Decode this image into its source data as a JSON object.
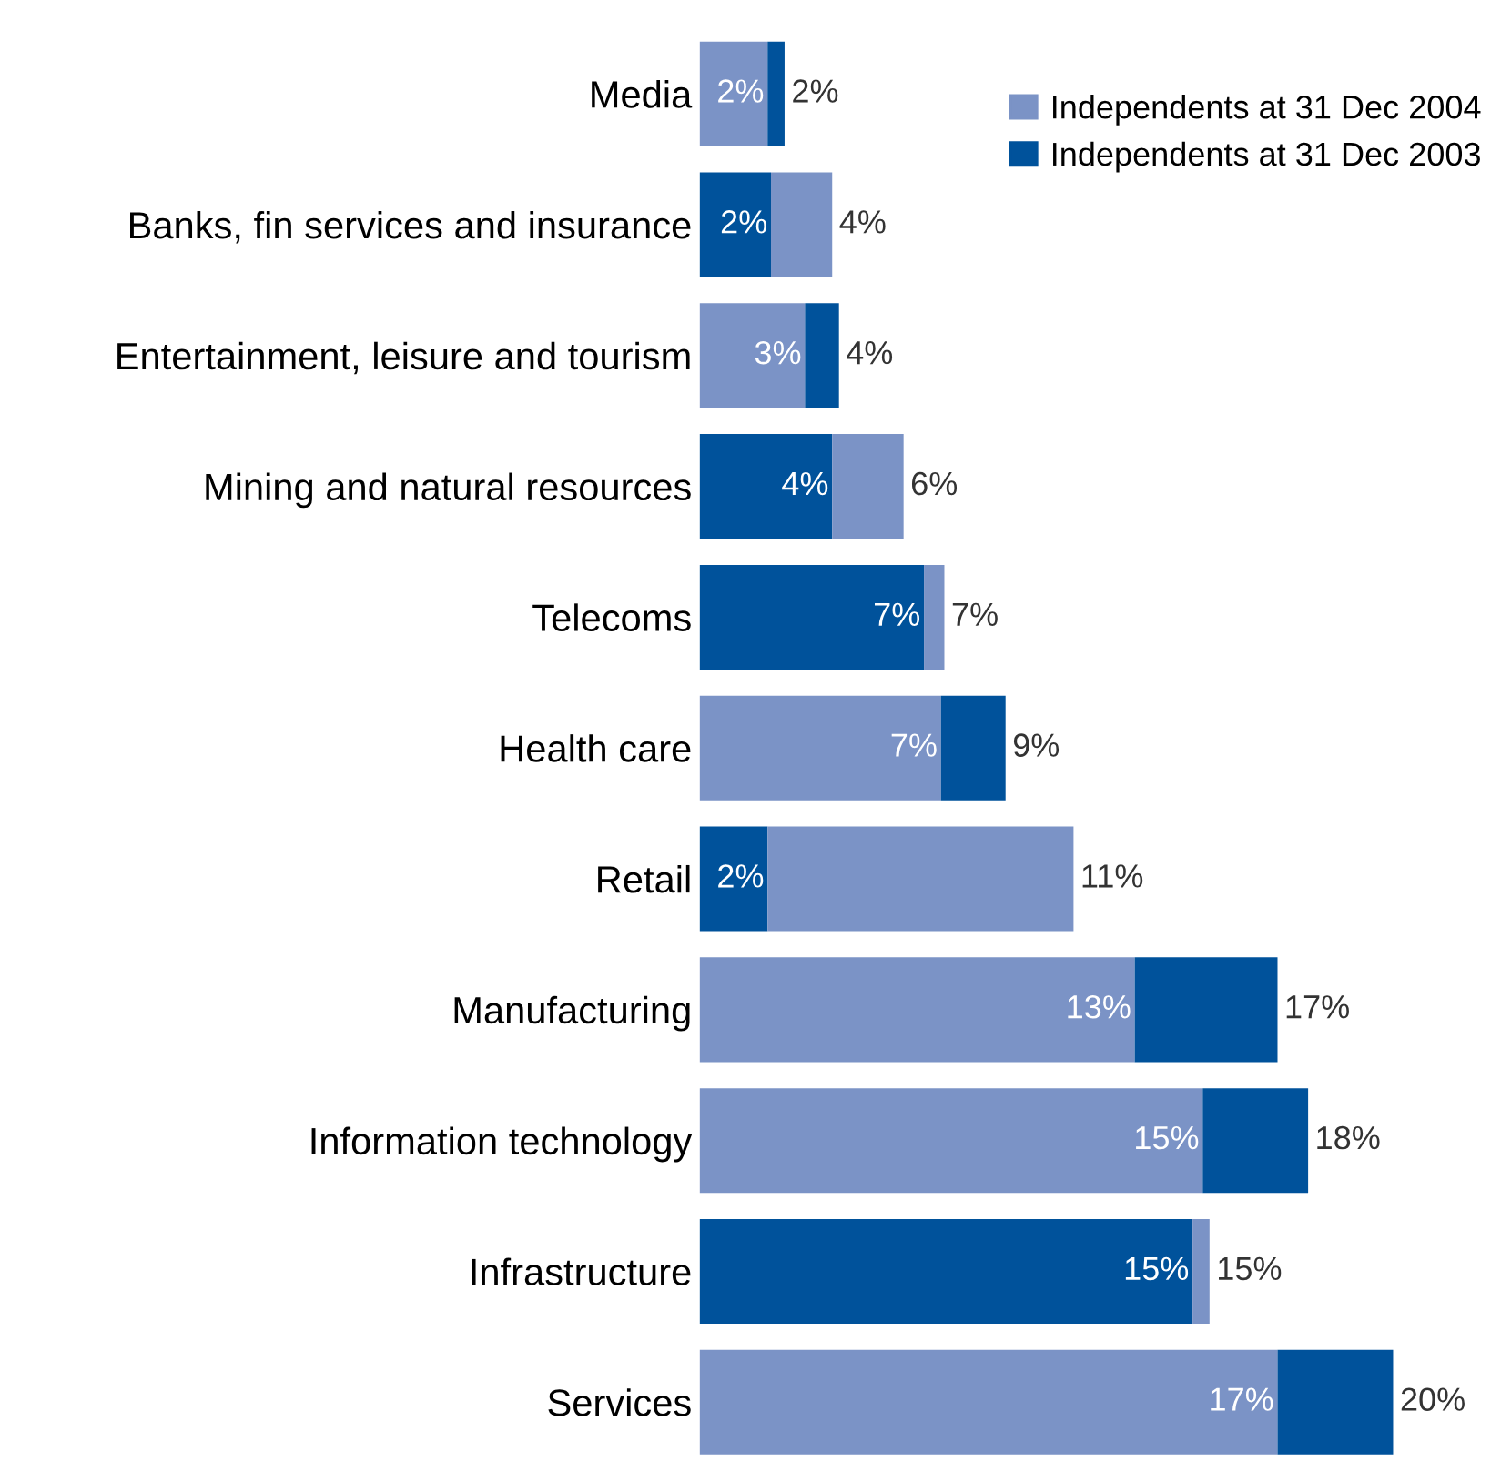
{
  "chart_data": {
    "type": "bar",
    "orientation": "horizontal",
    "stacked": true,
    "legend": "top right",
    "grid": false,
    "categories": [
      "Media",
      "Banks, fin services and insurance",
      "Entertainment, leisure and tourism",
      "Mining and natural resources",
      "Telecoms",
      "Health care",
      "Retail",
      "Manufacturing",
      "Information technology",
      "Infrastructure",
      "Services"
    ],
    "series": [
      {
        "name": "Independents at 31 Dec 2004",
        "color": "#7b93c6",
        "values": [
          2.0,
          null,
          3.1,
          null,
          null,
          7.1,
          null,
          12.8,
          14.8,
          null,
          17.0
        ],
        "value_labels": [
          "2%",
          null,
          "3%",
          null,
          null,
          "7%",
          null,
          "13%",
          "15%",
          null,
          "17%"
        ]
      },
      {
        "name": "Independents at 31 Dec 2003",
        "color": "#00529b",
        "values": [
          null,
          2.1,
          null,
          3.9,
          6.6,
          null,
          2.0,
          null,
          null,
          14.5,
          null
        ],
        "value_labels": [
          null,
          "2%",
          null,
          "4%",
          "7%",
          null,
          "2%",
          null,
          null,
          "15%",
          null
        ]
      },
      {
        "color": "#7b93c6",
        "values": [
          null,
          1.8,
          null,
          2.1,
          0.6,
          null,
          9.0,
          null,
          null,
          0.5,
          null
        ]
      },
      {
        "color": "#00529b",
        "values": [
          0.5,
          null,
          1.0,
          null,
          null,
          1.9,
          null,
          4.2,
          3.1,
          null,
          3.4
        ]
      }
    ],
    "totals": [
      "2%",
      "4%",
      "4%",
      "6%",
      "7%",
      "9%",
      "11%",
      "17%",
      "18%",
      "15%",
      "20%"
    ]
  }
}
